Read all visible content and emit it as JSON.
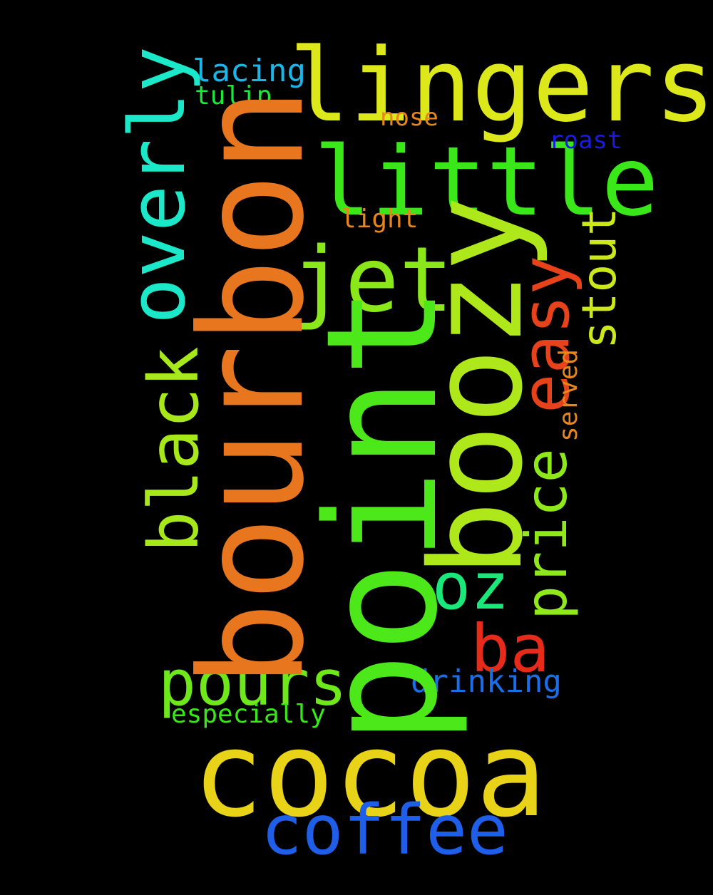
{
  "background": "#000000",
  "words": {
    "point": {
      "text": "point",
      "color": "#4ce81a"
    },
    "bourbon": {
      "text": "bourbon",
      "color": "#e8761e"
    },
    "boozy": {
      "text": "boozy",
      "color": "#aee81a"
    },
    "cocoa": {
      "text": "cocoa",
      "color": "#e8d318"
    },
    "lingers": {
      "text": "lingers",
      "color": "#dce81a"
    },
    "little": {
      "text": "little",
      "color": "#3ae81a"
    },
    "jet": {
      "text": "jet",
      "color": "#8ae81a"
    },
    "overly": {
      "text": "overly",
      "color": "#1ae8c8"
    },
    "black": {
      "text": "black",
      "color": "#a6e81a"
    },
    "pours": {
      "text": "pours",
      "color": "#6ee81a"
    },
    "coffee": {
      "text": "coffee",
      "color": "#1e5ee8"
    },
    "easy": {
      "text": "easy",
      "color": "#e8421a"
    },
    "ba": {
      "text": "ba",
      "color": "#e82a1a"
    },
    "oz": {
      "text": "oz",
      "color": "#1ae87a"
    },
    "price": {
      "text": "price",
      "color": "#8ee81a"
    },
    "stout": {
      "text": "stout",
      "color": "#cce81a"
    },
    "lacing": {
      "text": "lacing",
      "color": "#1ab6e8"
    },
    "tulip": {
      "text": "tulip",
      "color": "#1ae83a"
    },
    "nose": {
      "text": "nose",
      "color": "#e8861a"
    },
    "roast": {
      "text": "roast",
      "color": "#1a1ae8"
    },
    "light": {
      "text": "light",
      "color": "#e8861a"
    },
    "served": {
      "text": "served",
      "color": "#e8861a"
    },
    "drinking": {
      "text": "drinking",
      "color": "#1a6ee8"
    },
    "especially": {
      "text": "especially",
      "color": "#3ae81a"
    }
  }
}
